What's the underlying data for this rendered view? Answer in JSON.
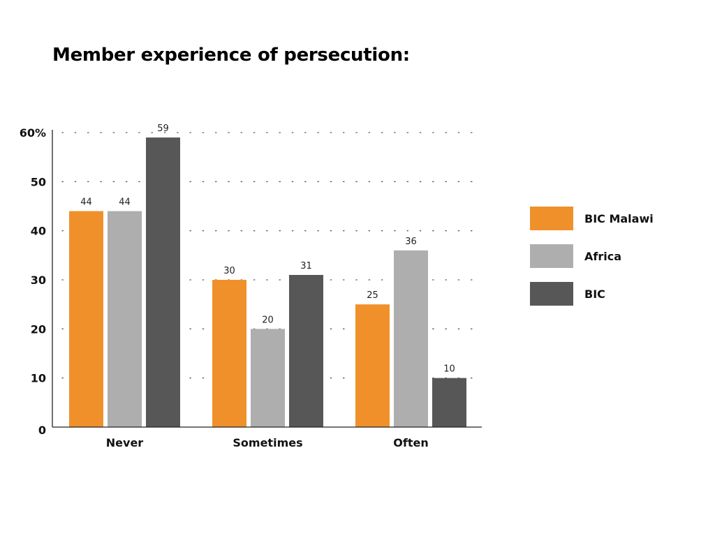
{
  "chart_data": {
    "type": "bar",
    "title": "Member experience of persecution:",
    "categories": [
      "Never",
      "Sometimes",
      "Often"
    ],
    "series": [
      {
        "name": "BIC Malawi",
        "color": "#F0902B",
        "values": [
          44,
          30,
          25
        ]
      },
      {
        "name": "Africa",
        "color": "#AEAEAE",
        "values": [
          44,
          20,
          36
        ]
      },
      {
        "name": "BIC",
        "color": "#575757",
        "values": [
          59,
          31,
          10
        ]
      }
    ],
    "yticks": [
      "0",
      "10",
      "20",
      "30",
      "40",
      "50",
      "60%"
    ],
    "ylim": [
      0,
      60
    ],
    "grid": true,
    "grid_style": "dotted",
    "legend_position": "right"
  }
}
